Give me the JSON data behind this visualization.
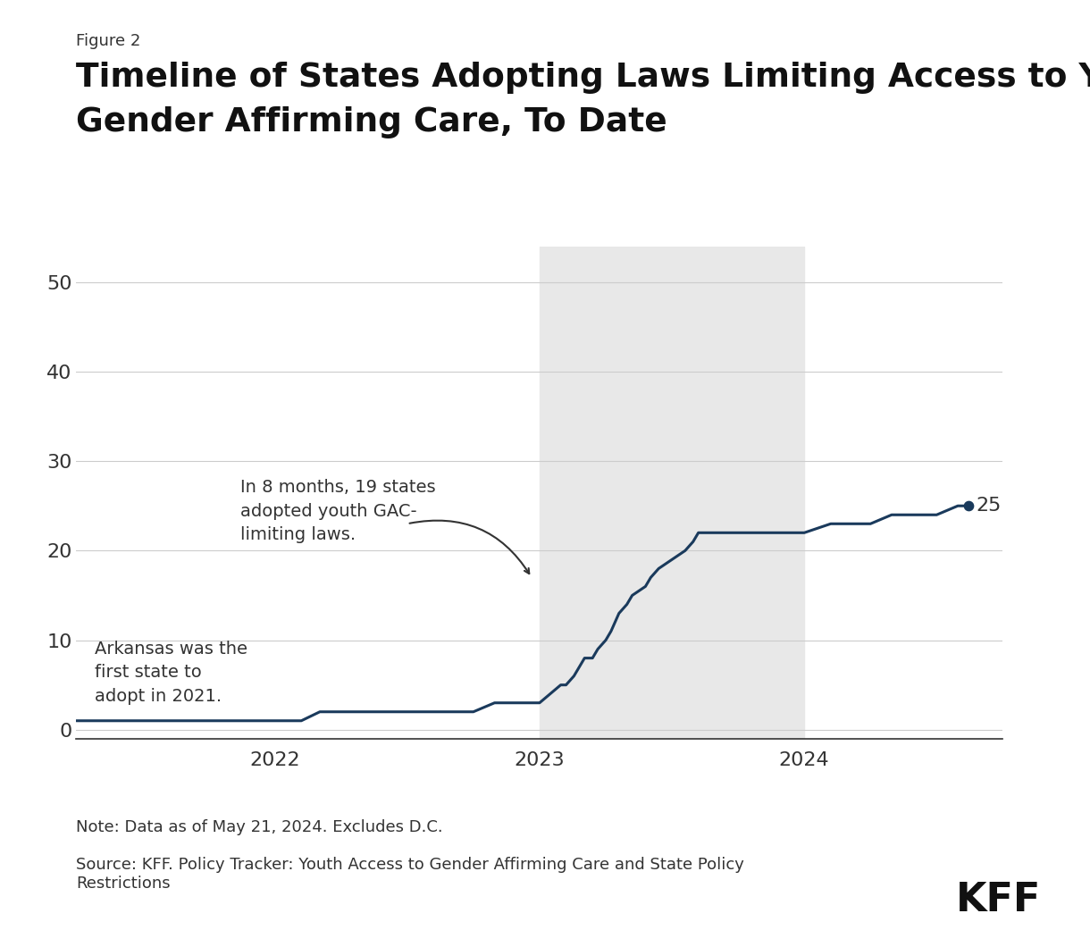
{
  "figure_label": "Figure 2",
  "title_line1": "Timeline of States Adopting Laws Limiting Access to Youth",
  "title_line2": "Gender Affirming Care, To Date",
  "note": "Note: Data as of May 21, 2024. Excludes D.C.",
  "source": "Source: KFF. Policy Tracker: Youth Access to Gender Affirming Care and State Policy\nRestrictions",
  "line_color": "#1a3a5c",
  "background_color": "#ffffff",
  "shaded_region_color": "#e8e8e8",
  "shaded_x_start": 2023.0,
  "shaded_x_end": 2024.0,
  "yticks": [
    0,
    10,
    20,
    30,
    40,
    50
  ],
  "ylim": [
    -1,
    54
  ],
  "xlim_start": 2021.25,
  "xlim_end": 2024.75,
  "xtick_positions": [
    2022,
    2023,
    2024
  ],
  "end_label_value": "25",
  "x_data": [
    2021.25,
    2021.33,
    2021.5,
    2021.75,
    2022.0,
    2022.1,
    2022.17,
    2022.25,
    2022.5,
    2022.75,
    2022.83,
    2023.0,
    2023.08,
    2023.1,
    2023.13,
    2023.15,
    2023.17,
    2023.2,
    2023.22,
    2023.25,
    2023.27,
    2023.3,
    2023.33,
    2023.35,
    2023.4,
    2023.42,
    2023.45,
    2023.5,
    2023.55,
    2023.58,
    2023.6,
    2023.65,
    2023.7,
    2023.75,
    2023.83,
    2023.9,
    2024.0,
    2024.1,
    2024.17,
    2024.25,
    2024.33,
    2024.42,
    2024.5,
    2024.58,
    2024.62
  ],
  "y_data": [
    1,
    1,
    1,
    1,
    1,
    1,
    2,
    2,
    2,
    2,
    3,
    3,
    5,
    5,
    6,
    7,
    8,
    8,
    9,
    10,
    11,
    13,
    14,
    15,
    16,
    17,
    18,
    19,
    20,
    21,
    22,
    22,
    22,
    22,
    22,
    22,
    22,
    23,
    23,
    23,
    24,
    24,
    24,
    25,
    25
  ],
  "annotation1_text": "In 8 months, 19 states\nadopted youth GAC-\nlimiting laws.",
  "annotation2_text": "Arkansas was the\nfirst state to\nadopt in 2021.",
  "grid_color": "#cccccc",
  "tick_fontsize": 16,
  "annotation_fontsize": 14
}
